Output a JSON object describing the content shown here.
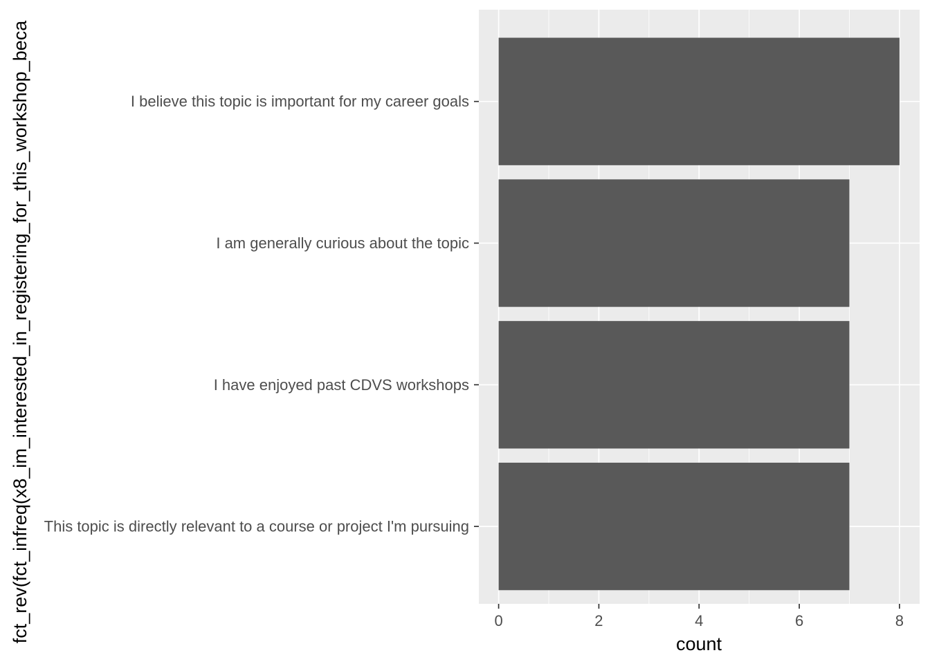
{
  "chart_data": {
    "type": "bar",
    "orientation": "horizontal",
    "categories": [
      "I believe this topic is important for my career goals",
      "I am generally curious about the topic",
      "I have enjoyed past CDVS workshops",
      "This topic is directly relevant to a course or project I'm pursuing"
    ],
    "values": [
      8,
      7,
      7,
      7
    ],
    "xlabel": "count",
    "ylabel": "fct_rev(fct_infreq(x8_im_interested_in_registering_for_this_workshop_beca",
    "xlim": [
      0,
      8
    ],
    "xticks": [
      0,
      2,
      4,
      6,
      8
    ],
    "grid": true,
    "colors": {
      "panel": "#ebebeb",
      "grid_major": "#ffffff",
      "bar": "#595959",
      "tick_text": "#4d4d4d",
      "tick_mark": "#333333"
    }
  }
}
